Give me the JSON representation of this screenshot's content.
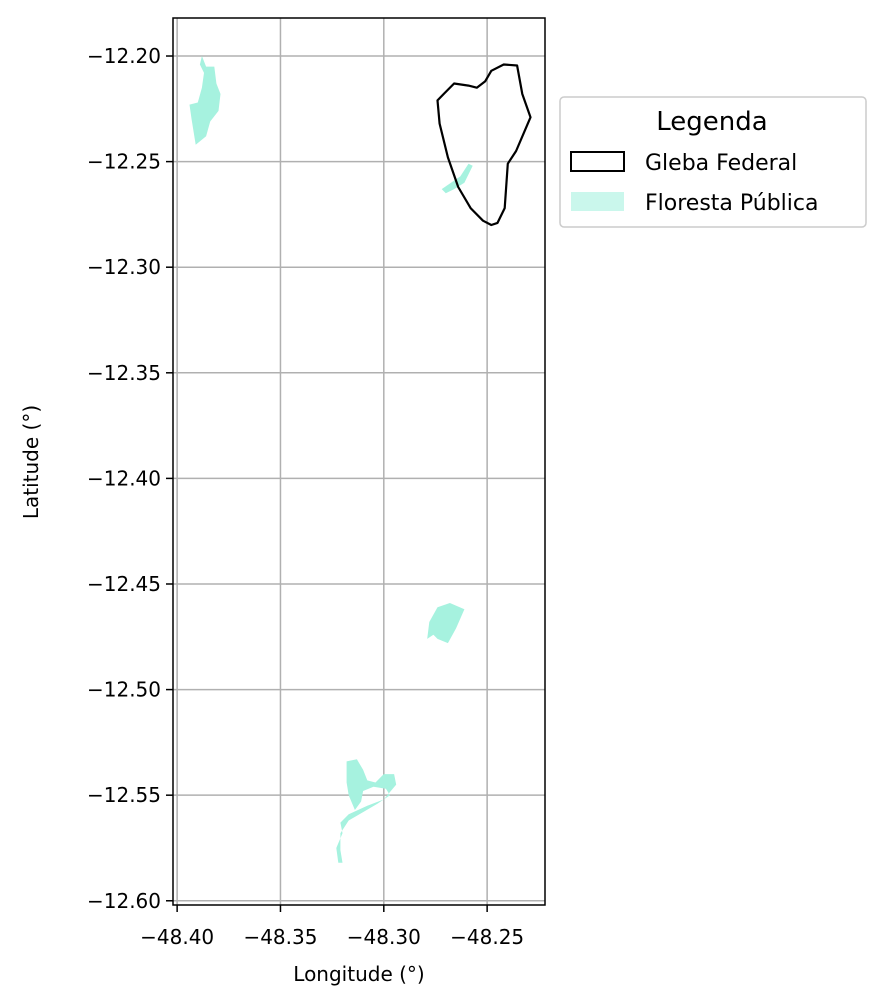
{
  "chart_data": {
    "type": "map",
    "xlabel": "Longitude (°)",
    "ylabel": "Latitude (°)",
    "xlim": [
      -48.402,
      -48.222
    ],
    "ylim": [
      -12.602,
      -12.182
    ],
    "x_ticks": [
      -48.4,
      -48.35,
      -48.3,
      -48.25
    ],
    "x_tick_labels": [
      "−48.40",
      "−48.35",
      "−48.30",
      "−48.25"
    ],
    "y_ticks": [
      -12.2,
      -12.25,
      -12.3,
      -12.35,
      -12.4,
      -12.45,
      -12.5,
      -12.55,
      -12.6
    ],
    "y_tick_labels": [
      "−12.20",
      "−12.25",
      "−12.30",
      "−12.35",
      "−12.40",
      "−12.45",
      "−12.50",
      "−12.55",
      "−12.60"
    ],
    "grid": true,
    "legend": {
      "title": "Legenda",
      "placement": "outside-upper-right",
      "entries": [
        {
          "label": "Gleba Federal",
          "style": "outline",
          "color": "#000000"
        },
        {
          "label": "Floresta Pública",
          "style": "fill",
          "color": "#a6f2df"
        }
      ]
    },
    "layers": [
      {
        "name": "Gleba Federal",
        "style": "outline",
        "color": "#000000",
        "polygons": [
          [
            [
              -48.271,
              -12.218
            ],
            [
              -48.266,
              -12.213
            ],
            [
              -48.259,
              -12.214
            ],
            [
              -48.255,
              -12.215
            ],
            [
              -48.251,
              -12.212
            ],
            [
              -48.248,
              -12.207
            ],
            [
              -48.242,
              -12.204
            ],
            [
              -48.2355,
              -12.2045
            ],
            [
              -48.233,
              -12.218
            ],
            [
              -48.229,
              -12.229
            ],
            [
              -48.236,
              -12.245
            ],
            [
              -48.24,
              -12.251
            ],
            [
              -48.2415,
              -12.272
            ],
            [
              -48.245,
              -12.279
            ],
            [
              -48.248,
              -12.28
            ],
            [
              -48.252,
              -12.278
            ],
            [
              -48.258,
              -12.272
            ],
            [
              -48.264,
              -12.262
            ],
            [
              -48.269,
              -12.248
            ],
            [
              -48.273,
              -12.232
            ],
            [
              -48.274,
              -12.221
            ]
          ]
        ]
      },
      {
        "name": "Floresta Pública",
        "style": "fill",
        "color": "#a6f2df",
        "polygons": [
          [
            [
              -48.388,
              -12.2
            ],
            [
              -48.386,
              -12.205
            ],
            [
              -48.382,
              -12.205
            ],
            [
              -48.381,
              -12.213
            ],
            [
              -48.379,
              -12.218
            ],
            [
              -48.38,
              -12.226
            ],
            [
              -48.384,
              -12.231
            ],
            [
              -48.386,
              -12.238
            ],
            [
              -48.391,
              -12.242
            ],
            [
              -48.393,
              -12.23
            ],
            [
              -48.394,
              -12.223
            ],
            [
              -48.39,
              -12.222
            ],
            [
              -48.388,
              -12.215
            ],
            [
              -48.387,
              -12.208
            ],
            [
              -48.389,
              -12.204
            ]
          ],
          [
            [
              -48.272,
              -12.263
            ],
            [
              -48.266,
              -12.259
            ],
            [
              -48.263,
              -12.257
            ],
            [
              -48.259,
              -12.251
            ],
            [
              -48.257,
              -12.252
            ],
            [
              -48.261,
              -12.26
            ],
            [
              -48.266,
              -12.263
            ],
            [
              -48.27,
              -12.265
            ]
          ],
          [
            [
              -48.279,
              -12.476
            ],
            [
              -48.278,
              -12.468
            ],
            [
              -48.274,
              -12.461
            ],
            [
              -48.268,
              -12.459
            ],
            [
              -48.261,
              -12.462
            ],
            [
              -48.265,
              -12.471
            ],
            [
              -48.269,
              -12.478
            ],
            [
              -48.274,
              -12.476
            ],
            [
              -48.276,
              -12.474
            ]
          ],
          [
            [
              -48.322,
              -12.582
            ],
            [
              -48.323,
              -12.575
            ],
            [
              -48.32,
              -12.568
            ],
            [
              -48.321,
              -12.563
            ],
            [
              -48.317,
              -12.559
            ],
            [
              -48.308,
              -12.555
            ],
            [
              -48.3,
              -12.552
            ],
            [
              -48.294,
              -12.545
            ],
            [
              -48.295,
              -12.54
            ],
            [
              -48.3,
              -12.54
            ],
            [
              -48.304,
              -12.544
            ],
            [
              -48.308,
              -12.543
            ],
            [
              -48.31,
              -12.538
            ],
            [
              -48.313,
              -12.533
            ],
            [
              -48.318,
              -12.534
            ],
            [
              -48.318,
              -12.544
            ],
            [
              -48.317,
              -12.55
            ],
            [
              -48.314,
              -12.557
            ],
            [
              -48.311,
              -12.553
            ],
            [
              -48.31,
              -12.548
            ],
            [
              -48.305,
              -12.546
            ],
            [
              -48.299,
              -12.547
            ],
            [
              -48.297,
              -12.55
            ],
            [
              -48.303,
              -12.554
            ],
            [
              -48.31,
              -12.558
            ],
            [
              -48.317,
              -12.562
            ],
            [
              -48.321,
              -12.568
            ],
            [
              -48.321,
              -12.576
            ],
            [
              -48.32,
              -12.582
            ]
          ]
        ]
      }
    ]
  }
}
